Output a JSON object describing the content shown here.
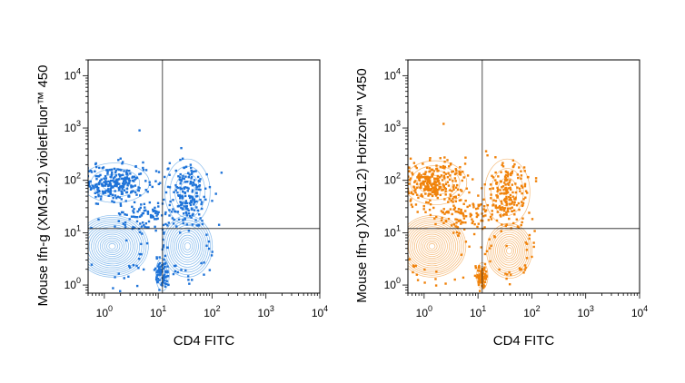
{
  "chart_data": [
    {
      "type": "scatter",
      "subtype": "flow-cytometry-contour-dot-plot",
      "xlabel": "CD4 FITC",
      "ylabel": "Mouse Ifn-g (XMG1.2) violetFluor™ 450",
      "x_scale": "log",
      "y_scale": "log",
      "xlim": [
        0.5,
        10000
      ],
      "ylim": [
        0.7,
        20000
      ],
      "x_tick_labels": [
        {
          "base": "10",
          "exp": "0",
          "value": 1
        },
        {
          "base": "10",
          "exp": "1",
          "value": 10
        },
        {
          "base": "10",
          "exp": "2",
          "value": 100
        },
        {
          "base": "10",
          "exp": "3",
          "value": 1000
        },
        {
          "base": "10",
          "exp": "4",
          "value": 10000
        }
      ],
      "y_tick_labels": [
        {
          "base": "10",
          "exp": "0",
          "value": 1
        },
        {
          "base": "10",
          "exp": "1",
          "value": 10
        },
        {
          "base": "10",
          "exp": "2",
          "value": 100
        },
        {
          "base": "10",
          "exp": "3",
          "value": 1000
        },
        {
          "base": "10",
          "exp": "4",
          "value": 10000
        }
      ],
      "quadrant_gate": {
        "x": 12,
        "y": 12
      },
      "color": "#1e73d8",
      "contour_color": "#5aa2e6",
      "populations": [
        {
          "x_center": 1.4,
          "y_center": 5.5,
          "x_spread": 0.32,
          "y_spread": 0.28,
          "count": 130,
          "contours": 16
        },
        {
          "x_center": 35,
          "y_center": 5.5,
          "x_spread": 0.22,
          "y_spread": 0.28,
          "count": 130,
          "contours": 12
        },
        {
          "x_center": 1.6,
          "y_center": 90,
          "x_spread": 0.3,
          "y_spread": 0.18,
          "count": 260,
          "contours": 3
        },
        {
          "x_center": 35,
          "y_center": 60,
          "x_spread": 0.2,
          "y_spread": 0.3,
          "count": 170,
          "contours": 4
        },
        {
          "x_center": 12,
          "y_center": 1.6,
          "x_spread": 0.06,
          "y_spread": 0.15,
          "count": 80,
          "contours": 3
        },
        {
          "x_center": 6,
          "y_center": 20,
          "x_spread": 0.28,
          "y_spread": 0.15,
          "count": 90,
          "contours": 0
        }
      ],
      "outlier_points": [
        [
          4.5,
          900
        ],
        [
          50,
          150
        ],
        [
          80,
          130
        ],
        [
          150,
          140
        ]
      ]
    },
    {
      "type": "scatter",
      "subtype": "flow-cytometry-contour-dot-plot",
      "xlabel": "CD4 FITC",
      "ylabel": "Mouse Ifn-g )XMG1.2) Horizon™  V450",
      "x_scale": "log",
      "y_scale": "log",
      "xlim": [
        0.5,
        10000
      ],
      "ylim": [
        0.7,
        20000
      ],
      "x_tick_labels": [
        {
          "base": "10",
          "exp": "0",
          "value": 1
        },
        {
          "base": "10",
          "exp": "1",
          "value": 10
        },
        {
          "base": "10",
          "exp": "2",
          "value": 100
        },
        {
          "base": "10",
          "exp": "3",
          "value": 1000
        },
        {
          "base": "10",
          "exp": "4",
          "value": 10000
        }
      ],
      "y_tick_labels": [
        {
          "base": "10",
          "exp": "0",
          "value": 1
        },
        {
          "base": "10",
          "exp": "1",
          "value": 10
        },
        {
          "base": "10",
          "exp": "2",
          "value": 100
        },
        {
          "base": "10",
          "exp": "3",
          "value": 1000
        },
        {
          "base": "10",
          "exp": "4",
          "value": 10000
        }
      ],
      "quadrant_gate": {
        "x": 12,
        "y": 12
      },
      "color": "#f0820a",
      "contour_color": "#f2a24a",
      "populations": [
        {
          "x_center": 1.4,
          "y_center": 5.5,
          "x_spread": 0.3,
          "y_spread": 0.28,
          "count": 130,
          "contours": 16
        },
        {
          "x_center": 38,
          "y_center": 4.5,
          "x_spread": 0.2,
          "y_spread": 0.25,
          "count": 130,
          "contours": 12
        },
        {
          "x_center": 1.6,
          "y_center": 90,
          "x_spread": 0.28,
          "y_spread": 0.2,
          "count": 280,
          "contours": 4
        },
        {
          "x_center": 35,
          "y_center": 60,
          "x_spread": 0.2,
          "y_spread": 0.3,
          "count": 180,
          "contours": 3
        },
        {
          "x_center": 12,
          "y_center": 1.5,
          "x_spread": 0.05,
          "y_spread": 0.12,
          "count": 80,
          "contours": 3
        },
        {
          "x_center": 6,
          "y_center": 22,
          "x_spread": 0.28,
          "y_spread": 0.15,
          "count": 100,
          "contours": 0
        }
      ],
      "outlier_points": [
        [
          2.3,
          1200
        ],
        [
          15,
          300
        ],
        [
          45,
          180
        ],
        [
          120,
          110
        ]
      ]
    }
  ]
}
